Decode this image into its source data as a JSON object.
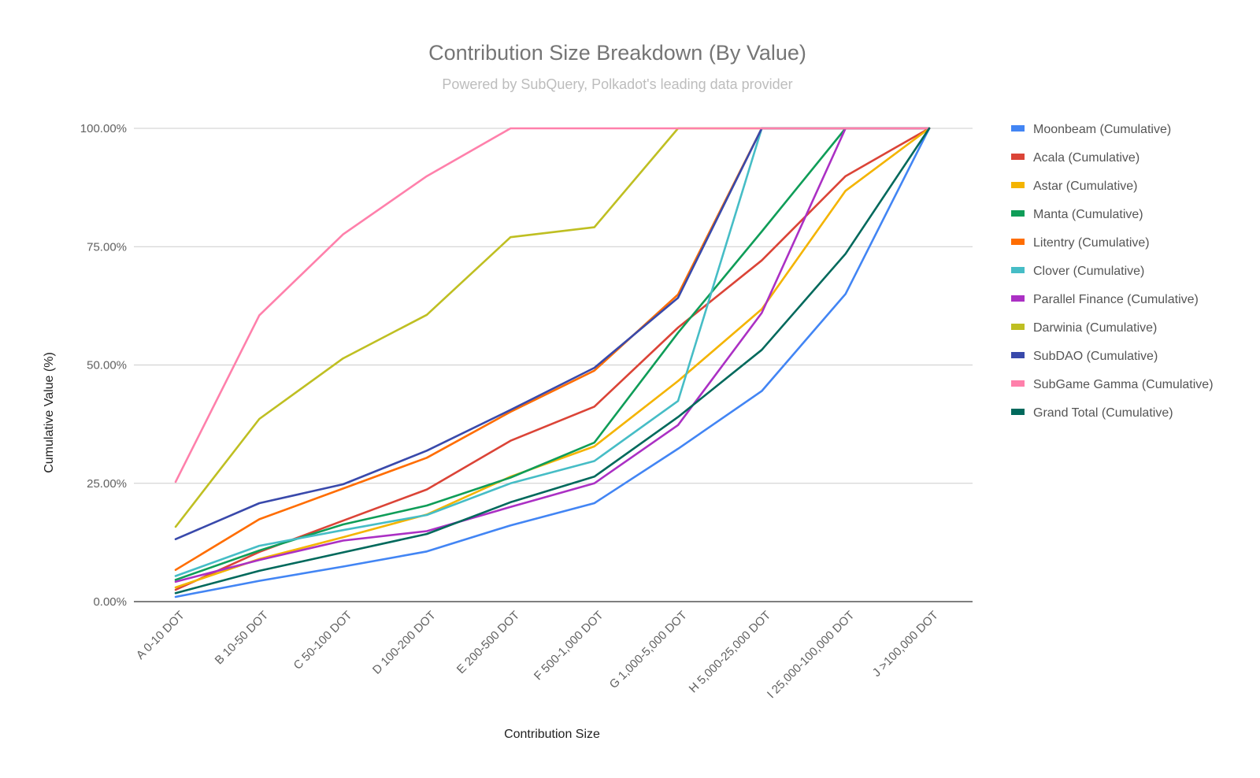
{
  "chart_data": {
    "type": "line",
    "title": "Contribution Size Breakdown (By Value)",
    "subtitle": "Powered by SubQuery, Polkadot's leading data provider",
    "xlabel": "Contribution Size",
    "ylabel": "Cumulative Value (%)",
    "ylim": [
      0,
      100
    ],
    "yticks": [
      0,
      25,
      50,
      75,
      100
    ],
    "ytick_labels": [
      "0.00%",
      "25.00%",
      "50.00%",
      "75.00%",
      "100.00%"
    ],
    "grid": true,
    "legend_position": "right",
    "categories": [
      "A 0-10 DOT",
      "B 10-50 DOT",
      "C 50-100 DOT",
      "D 100-200 DOT",
      "E 200-500 DOT",
      "F 500-1,000 DOT",
      "G 1,000-5,000 DOT",
      "H 5,000-25,000 DOT",
      "I 25,000-100,000 DOT",
      "J >100,000 DOT"
    ],
    "series": [
      {
        "name": "Moonbeam (Cumulative)",
        "color": "#4285f4",
        "values": [
          1.0,
          4.4,
          7.4,
          10.6,
          16.1,
          20.8,
          32.3,
          44.5,
          65.0,
          100.0
        ]
      },
      {
        "name": "Acala (Cumulative)",
        "color": "#db4437",
        "values": [
          2.5,
          10.5,
          17.1,
          23.7,
          34.0,
          41.2,
          57.9,
          72.1,
          89.9,
          100.0
        ]
      },
      {
        "name": "Astar (Cumulative)",
        "color": "#f4b400",
        "values": [
          3.0,
          9.0,
          13.6,
          18.4,
          26.4,
          32.8,
          46.6,
          61.8,
          86.8,
          100.0
        ]
      },
      {
        "name": "Manta (Cumulative)",
        "color": "#0f9d58",
        "values": [
          4.6,
          10.8,
          16.3,
          20.3,
          26.2,
          33.6,
          56.8,
          78.2,
          100.0,
          100.0
        ]
      },
      {
        "name": "Litentry (Cumulative)",
        "color": "#ff6d01",
        "values": [
          6.7,
          17.4,
          23.9,
          30.4,
          40.1,
          48.8,
          64.9,
          100.0,
          100.0,
          100.0
        ]
      },
      {
        "name": "Clover (Cumulative)",
        "color": "#46bdc6",
        "values": [
          5.4,
          11.8,
          15.1,
          18.3,
          25.0,
          29.7,
          42.4,
          100.0,
          100.0,
          100.0
        ]
      },
      {
        "name": "Parallel Finance (Cumulative)",
        "color": "#ab30c4",
        "values": [
          4.2,
          8.8,
          12.9,
          14.9,
          20.0,
          25.0,
          37.3,
          61.0,
          100.0,
          100.0
        ]
      },
      {
        "name": "Darwinia (Cumulative)",
        "color": "#bfbf22",
        "values": [
          15.8,
          38.6,
          51.4,
          60.6,
          77.0,
          79.1,
          100.0,
          100.0,
          100.0,
          100.0
        ]
      },
      {
        "name": "SubDAO (Cumulative)",
        "color": "#3949ab",
        "values": [
          13.2,
          20.8,
          24.8,
          31.9,
          40.5,
          49.4,
          64.2,
          100.0,
          100.0,
          100.0
        ]
      },
      {
        "name": "SubGame Gamma (Cumulative)",
        "color": "#ff80ab",
        "values": [
          25.3,
          60.5,
          77.6,
          89.9,
          100.0,
          100.0,
          100.0,
          100.0,
          100.0,
          100.0
        ]
      },
      {
        "name": "Grand Total (Cumulative)",
        "color": "#00695c",
        "values": [
          1.8,
          6.5,
          10.4,
          14.3,
          21.0,
          26.4,
          39.0,
          53.2,
          73.5,
          100.0
        ]
      }
    ]
  }
}
